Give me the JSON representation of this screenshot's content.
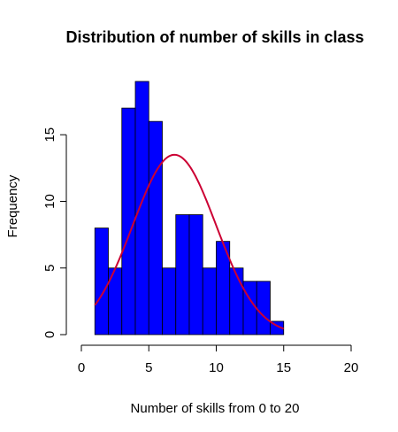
{
  "chart_data": {
    "type": "bar",
    "title": "Distribution of number of skills in class",
    "xlabel": "Number of skills from 0 to 20",
    "ylabel": "Frequency",
    "xlim": [
      0,
      20
    ],
    "ylim": [
      0,
      19
    ],
    "x_ticks": [
      0,
      5,
      10,
      15,
      20
    ],
    "y_ticks": [
      0,
      5,
      10,
      15
    ],
    "bins": [
      {
        "from": 1,
        "to": 2,
        "count": 8
      },
      {
        "from": 2,
        "to": 3,
        "count": 5
      },
      {
        "from": 3,
        "to": 4,
        "count": 17
      },
      {
        "from": 4,
        "to": 5,
        "count": 19
      },
      {
        "from": 5,
        "to": 6,
        "count": 16
      },
      {
        "from": 6,
        "to": 7,
        "count": 5
      },
      {
        "from": 7,
        "to": 8,
        "count": 9
      },
      {
        "from": 8,
        "to": 9,
        "count": 9
      },
      {
        "from": 9,
        "to": 10,
        "count": 5
      },
      {
        "from": 10,
        "to": 11,
        "count": 7
      },
      {
        "from": 11,
        "to": 12,
        "count": 5
      },
      {
        "from": 12,
        "to": 13,
        "count": 4
      },
      {
        "from": 13,
        "to": 14,
        "count": 4
      },
      {
        "from": 14,
        "to": 15,
        "count": 1
      }
    ],
    "bar_color": "#0000ff",
    "curve": {
      "type": "normal-density",
      "mean": 6.9,
      "peak": 13.5,
      "sd": 3.1,
      "x_range": [
        1,
        15
      ],
      "color": "#cc0033"
    },
    "grid": false
  }
}
